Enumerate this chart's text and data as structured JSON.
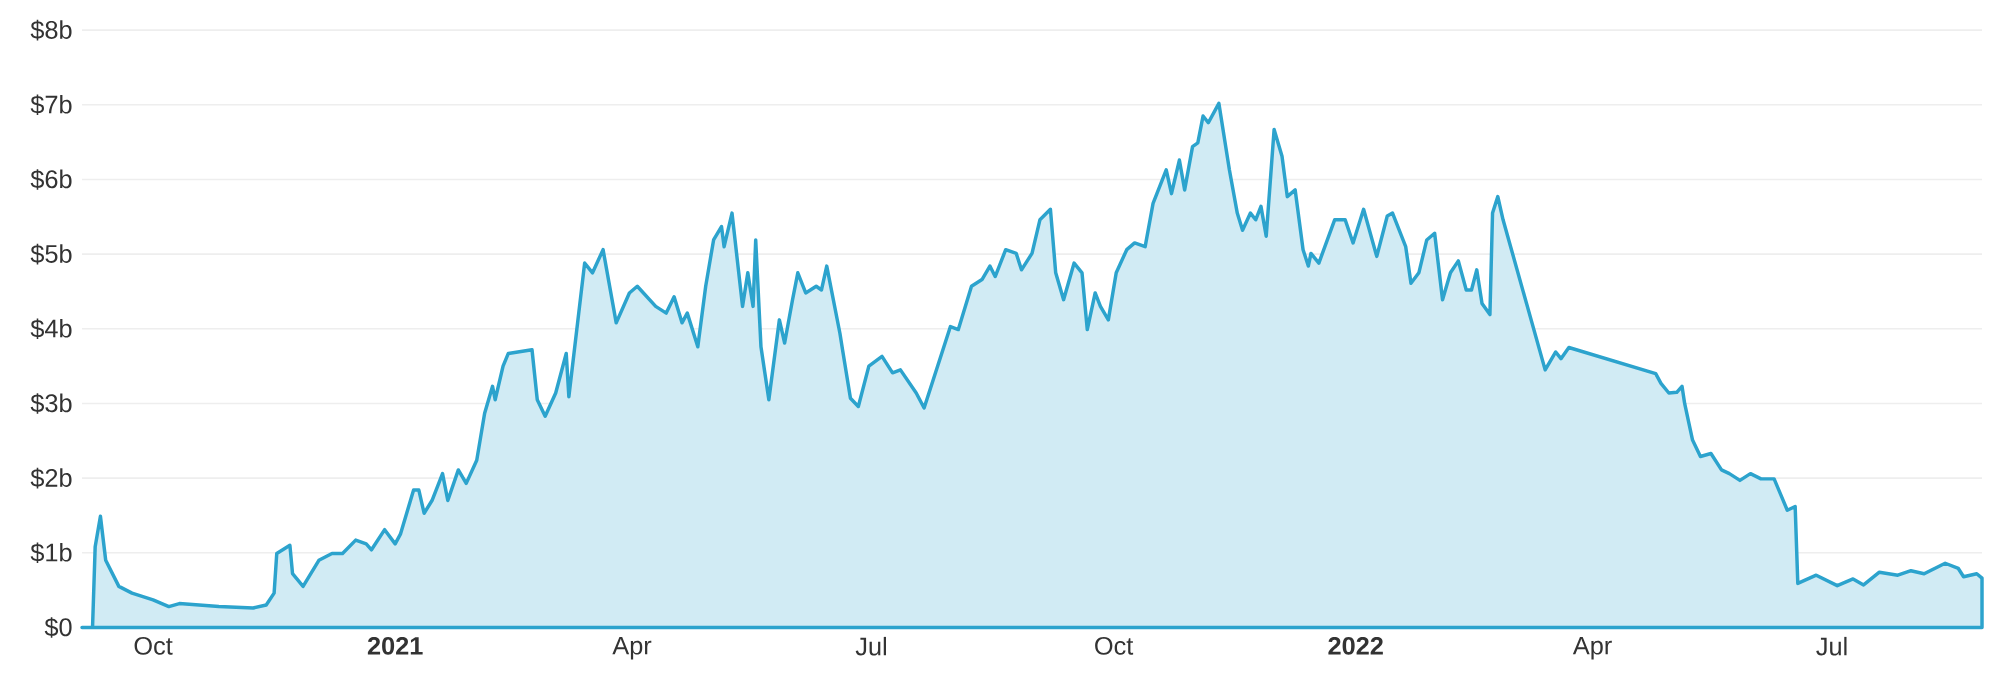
{
  "chart_data": {
    "type": "area",
    "color": "#2ca3cd",
    "x": [
      "2020-09-04",
      "2020-09-08",
      "2020-09-09",
      "2020-09-11",
      "2020-09-13",
      "2020-09-18",
      "2020-09-23",
      "2020-10-01",
      "2020-10-07",
      "2020-10-11",
      "2020-10-26",
      "2020-11-08",
      "2020-11-13",
      "2020-11-16",
      "2020-11-17",
      "2020-11-22",
      "2020-11-23",
      "2020-11-27",
      "2020-12-03",
      "2020-12-08",
      "2020-12-12",
      "2020-12-17",
      "2020-12-21",
      "2020-12-23",
      "2020-12-28",
      "2021-01-01",
      "2021-01-03",
      "2021-01-08",
      "2021-01-10",
      "2021-01-12",
      "2021-01-15",
      "2021-01-19",
      "2021-01-21",
      "2021-01-25",
      "2021-01-28",
      "2021-02-01",
      "2021-02-04",
      "2021-02-07",
      "2021-02-08",
      "2021-02-11",
      "2021-02-13",
      "2021-02-22",
      "2021-02-24",
      "2021-02-27",
      "2021-03-03",
      "2021-03-07",
      "2021-03-08",
      "2021-03-14",
      "2021-03-17",
      "2021-03-21",
      "2021-03-26",
      "2021-03-31",
      "2021-04-03",
      "2021-04-10",
      "2021-04-14",
      "2021-04-17",
      "2021-04-20",
      "2021-04-22",
      "2021-04-26",
      "2021-04-29",
      "2021-05-02",
      "2021-05-05",
      "2021-05-06",
      "2021-05-09",
      "2021-05-13",
      "2021-05-15",
      "2021-05-17",
      "2021-05-18",
      "2021-05-20",
      "2021-05-23",
      "2021-05-27",
      "2021-05-29",
      "2021-06-01",
      "2021-06-03",
      "2021-06-06",
      "2021-06-10",
      "2021-06-12",
      "2021-06-14",
      "2021-06-19",
      "2021-06-20",
      "2021-06-23",
      "2021-06-26",
      "2021-06-30",
      "2021-07-05",
      "2021-07-09",
      "2021-07-12",
      "2021-07-18",
      "2021-07-21",
      "2021-07-31",
      "2021-08-03",
      "2021-08-08",
      "2021-08-12",
      "2021-08-15",
      "2021-08-17",
      "2021-08-21",
      "2021-08-25",
      "2021-08-27",
      "2021-08-31",
      "2021-09-03",
      "2021-09-07",
      "2021-09-09",
      "2021-09-12",
      "2021-09-16",
      "2021-09-19",
      "2021-09-21",
      "2021-09-24",
      "2021-09-26",
      "2021-09-29",
      "2021-10-02",
      "2021-10-06",
      "2021-10-09",
      "2021-10-13",
      "2021-10-16",
      "2021-10-21",
      "2021-10-23",
      "2021-10-26",
      "2021-10-28",
      "2021-10-31",
      "2021-11-02",
      "2021-11-04",
      "2021-11-06",
      "2021-11-10",
      "2021-11-14",
      "2021-11-17",
      "2021-11-19",
      "2021-11-22",
      "2021-11-24",
      "2021-11-26",
      "2021-11-28",
      "2021-12-01",
      "2021-12-04",
      "2021-12-06",
      "2021-12-09",
      "2021-12-12",
      "2021-12-14",
      "2021-12-15",
      "2021-12-18",
      "2021-12-24",
      "2021-12-28",
      "2021-12-31",
      "2022-01-04",
      "2022-01-09",
      "2022-01-13",
      "2022-01-15",
      "2022-01-20",
      "2022-01-22",
      "2022-01-25",
      "2022-01-28",
      "2022-01-31",
      "2022-02-03",
      "2022-02-06",
      "2022-02-09",
      "2022-02-12",
      "2022-02-14",
      "2022-02-16",
      "2022-02-18",
      "2022-02-21",
      "2022-02-22",
      "2022-02-24",
      "2022-02-26",
      "2022-03-14",
      "2022-03-18",
      "2022-03-20",
      "2022-03-23",
      "2022-04-25",
      "2022-04-27",
      "2022-04-30",
      "2022-05-03",
      "2022-05-05",
      "2022-05-06",
      "2022-05-09",
      "2022-05-12",
      "2022-05-16",
      "2022-05-20",
      "2022-05-23",
      "2022-05-27",
      "2022-05-31",
      "2022-06-04",
      "2022-06-09",
      "2022-06-14",
      "2022-06-17",
      "2022-06-18",
      "2022-06-25",
      "2022-07-03",
      "2022-07-09",
      "2022-07-13",
      "2022-07-19",
      "2022-07-26",
      "2022-07-31",
      "2022-08-05",
      "2022-08-13",
      "2022-08-18",
      "2022-08-20",
      "2022-08-25",
      "2022-08-27"
    ],
    "values": [
      0,
      0,
      1.08,
      1.49,
      0.9,
      0.55,
      0.46,
      0.37,
      0.28,
      0.32,
      0.28,
      0.26,
      0.3,
      0.46,
      0.99,
      1.1,
      0.72,
      0.55,
      0.9,
      0.99,
      0.99,
      1.17,
      1.12,
      1.04,
      1.31,
      1.12,
      1.25,
      1.84,
      1.84,
      1.53,
      1.7,
      2.06,
      1.7,
      2.11,
      1.93,
      2.24,
      2.87,
      3.23,
      3.05,
      3.5,
      3.67,
      3.72,
      3.05,
      2.83,
      3.14,
      3.67,
      3.09,
      4.88,
      4.75,
      5.06,
      4.08,
      4.48,
      4.57,
      4.3,
      4.21,
      4.43,
      4.08,
      4.21,
      3.76,
      4.57,
      5.19,
      5.37,
      5.1,
      5.55,
      4.3,
      4.75,
      4.3,
      5.19,
      3.76,
      3.05,
      4.12,
      3.81,
      4.39,
      4.75,
      4.48,
      4.57,
      4.52,
      4.84,
      3.94,
      3.72,
      3.07,
      2.96,
      3.5,
      3.63,
      3.41,
      3.45,
      3.14,
      2.94,
      4.03,
      3.99,
      4.57,
      4.66,
      4.84,
      4.7,
      5.06,
      5.01,
      4.79,
      5.01,
      5.46,
      5.6,
      4.75,
      4.39,
      4.88,
      4.75,
      3.99,
      4.48,
      4.3,
      4.12,
      4.75,
      5.06,
      5.15,
      5.1,
      5.68,
      6.13,
      5.81,
      6.26,
      5.86,
      6.44,
      6.49,
      6.85,
      6.76,
      7.02,
      6.13,
      5.55,
      5.32,
      5.55,
      5.46,
      5.64,
      5.24,
      6.67,
      6.31,
      5.77,
      5.86,
      5.06,
      4.84,
      5.01,
      4.88,
      5.46,
      5.46,
      5.15,
      5.6,
      4.97,
      5.51,
      5.55,
      5.1,
      4.61,
      4.75,
      5.19,
      5.28,
      4.39,
      4.75,
      4.91,
      4.52,
      4.52,
      4.79,
      4.34,
      4.19,
      5.55,
      5.77,
      5.46,
      3.45,
      3.69,
      3.6,
      3.75,
      3.4,
      3.27,
      3.14,
      3.15,
      3.23,
      3.0,
      2.51,
      2.29,
      2.33,
      2.11,
      2.06,
      1.97,
      2.06,
      1.99,
      1.99,
      1.57,
      1.62,
      0.59,
      0.7,
      0.56,
      0.65,
      0.57,
      0.74,
      0.7,
      0.76,
      0.72,
      0.86,
      0.79,
      0.68,
      0.72,
      0.66
    ],
    "xlim": [
      "2020-09-04",
      "2022-08-27"
    ],
    "xticks": [
      {
        "value": "2020-10-01",
        "label": "Oct"
      },
      {
        "value": "2021-01-01",
        "label": "2021"
      },
      {
        "value": "2021-04-01",
        "label": "Apr"
      },
      {
        "value": "2021-07-01",
        "label": "Jul"
      },
      {
        "value": "2021-10-01",
        "label": "Oct"
      },
      {
        "value": "2022-01-01",
        "label": "2022"
      },
      {
        "value": "2022-04-01",
        "label": "Apr"
      },
      {
        "value": "2022-07-01",
        "label": "Jul"
      }
    ],
    "ylim": [
      0,
      8
    ],
    "yticks": [
      {
        "value": 0,
        "label": "$0"
      },
      {
        "value": 1,
        "label": "$1b"
      },
      {
        "value": 2,
        "label": "$2b"
      },
      {
        "value": 3,
        "label": "$3b"
      },
      {
        "value": 4,
        "label": "$4b"
      },
      {
        "value": 5,
        "label": "$5b"
      },
      {
        "value": 6,
        "label": "$6b"
      },
      {
        "value": 7,
        "label": "$7b"
      },
      {
        "value": 8,
        "label": "$8b"
      }
    ],
    "grid": "y"
  }
}
